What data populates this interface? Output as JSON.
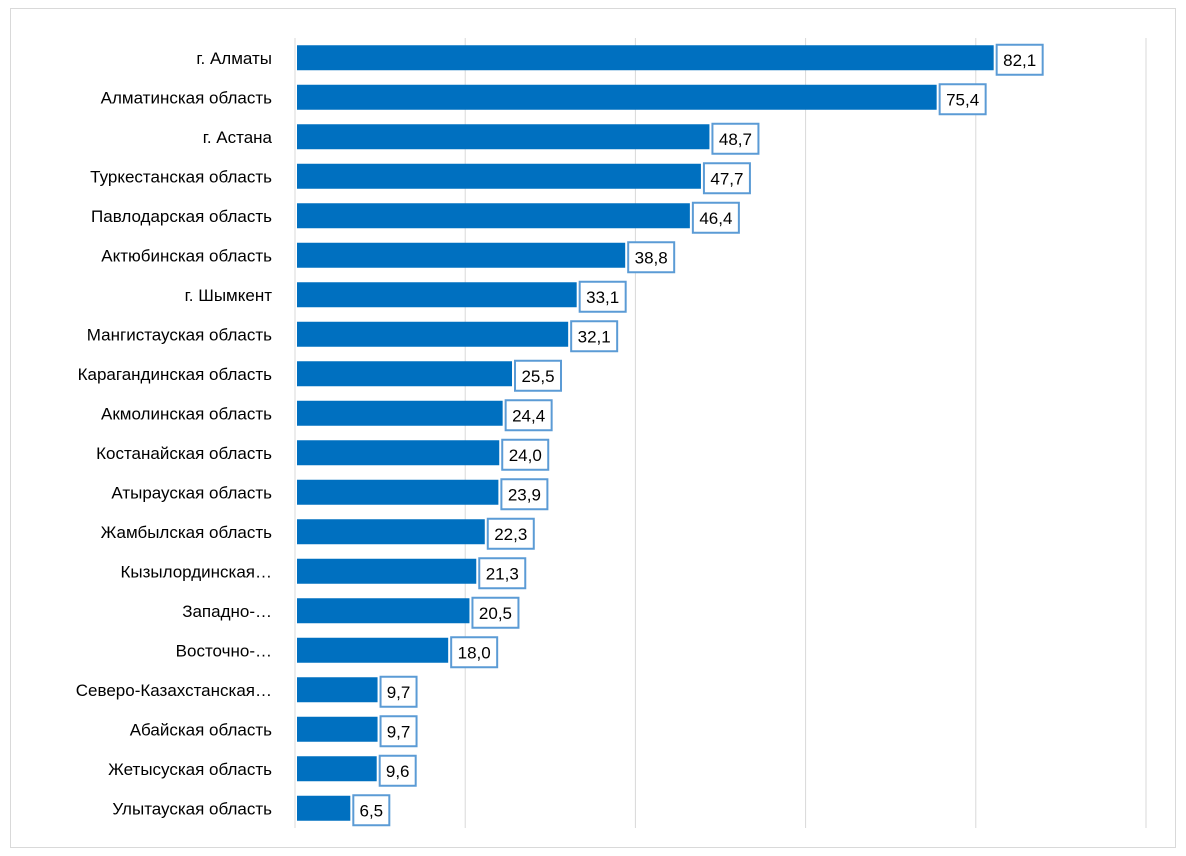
{
  "chart_data": {
    "type": "bar",
    "orientation": "horizontal",
    "categories": [
      "г. Алматы",
      "Алматинская область",
      "г. Астана",
      "Туркестанская область",
      "Павлодарская область",
      "Актюбинская область",
      "г. Шымкент",
      "Мангистауская область",
      "Карагандинская область",
      "Акмолинская область",
      "Костанайская область",
      "Атырауская область",
      "Жамбылская область",
      "Кызылординская…",
      "Западно-…",
      "Восточно-…",
      "Северо-Казахстанская…",
      "Абайская область",
      "Жетысуская область",
      "Улытауская область"
    ],
    "values": [
      82.1,
      75.4,
      48.7,
      47.7,
      46.4,
      38.8,
      33.1,
      32.1,
      25.5,
      24.4,
      24.0,
      23.9,
      22.3,
      21.3,
      20.5,
      18.0,
      9.7,
      9.7,
      9.6,
      6.5
    ],
    "value_labels": [
      "82,1",
      "75,4",
      "48,7",
      "47,7",
      "46,4",
      "38,8",
      "33,1",
      "32,1",
      "25,5",
      "24,4",
      "24,0",
      "23,9",
      "22,3",
      "21,3",
      "20,5",
      "18,0",
      "9,7",
      "9,7",
      "9,6",
      "6,5"
    ],
    "title": "",
    "xlabel": "",
    "ylabel": "",
    "xlim": [
      0,
      100
    ],
    "grid": "vertical",
    "bar_color": "#0070c0",
    "label_border_color": "#5b9bd5",
    "gridline_color": "#d9d9d9"
  }
}
